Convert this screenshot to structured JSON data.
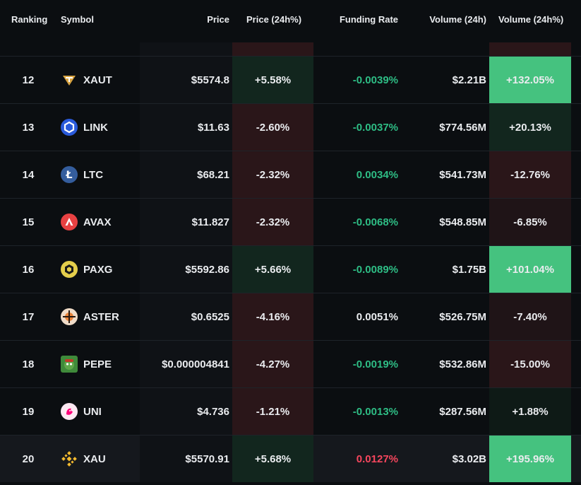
{
  "header": {
    "ranking": "Ranking",
    "symbol": "Symbol",
    "price": "Price",
    "price_change": "Price (24h%)",
    "funding": "Funding Rate",
    "volume": "Volume (24h)",
    "volume_change": "Volume (24h%)"
  },
  "colors": {
    "up_text": "#2ebd85",
    "down_text": "#f6465d",
    "strong_up_bg": "#45c27f",
    "mild_up_bg": "#12261e",
    "very_mild_up_bg": "#0e1a16",
    "down_bg": "#2a1619",
    "mild_down_bg": "#1f1417"
  },
  "rows": [
    {
      "rank": "12",
      "symbol": "XAUT",
      "icon": "tether-gold-icon",
      "price": "$5574.8",
      "price_change": "+5.58%",
      "price_tone": "up",
      "funding": "-0.0039%",
      "funding_tone": "green",
      "volume": "$2.21B",
      "volume_change": "+132.05%",
      "vol_tone": "strong-up"
    },
    {
      "rank": "13",
      "symbol": "LINK",
      "icon": "chainlink-icon",
      "price": "$11.63",
      "price_change": "-2.60%",
      "price_tone": "down",
      "funding": "-0.0037%",
      "funding_tone": "green",
      "volume": "$774.56M",
      "volume_change": "+20.13%",
      "vol_tone": "mild-up"
    },
    {
      "rank": "14",
      "symbol": "LTC",
      "icon": "litecoin-icon",
      "price": "$68.21",
      "price_change": "-2.32%",
      "price_tone": "down",
      "funding": "0.0034%",
      "funding_tone": "green",
      "volume": "$541.73M",
      "volume_change": "-12.76%",
      "vol_tone": "down"
    },
    {
      "rank": "15",
      "symbol": "AVAX",
      "icon": "avalanche-icon",
      "price": "$11.827",
      "price_change": "-2.32%",
      "price_tone": "down",
      "funding": "-0.0068%",
      "funding_tone": "green",
      "volume": "$548.85M",
      "volume_change": "-6.85%",
      "vol_tone": "mild-down"
    },
    {
      "rank": "16",
      "symbol": "PAXG",
      "icon": "pax-gold-icon",
      "price": "$5592.86",
      "price_change": "+5.66%",
      "price_tone": "up",
      "funding": "-0.0089%",
      "funding_tone": "green",
      "volume": "$1.75B",
      "volume_change": "+101.04%",
      "vol_tone": "strong-up"
    },
    {
      "rank": "17",
      "symbol": "ASTER",
      "icon": "aster-icon",
      "price": "$0.6525",
      "price_change": "-4.16%",
      "price_tone": "down",
      "funding": "0.0051%",
      "funding_tone": "white",
      "volume": "$526.75M",
      "volume_change": "-7.40%",
      "vol_tone": "mild-down"
    },
    {
      "rank": "18",
      "symbol": "PEPE",
      "icon": "pepe-icon",
      "price": "$0.000004841",
      "price_change": "-4.27%",
      "price_tone": "down",
      "funding": "-0.0019%",
      "funding_tone": "green",
      "volume": "$532.86M",
      "volume_change": "-15.00%",
      "vol_tone": "down"
    },
    {
      "rank": "19",
      "symbol": "UNI",
      "icon": "uniswap-icon",
      "price": "$4.736",
      "price_change": "-1.21%",
      "price_tone": "down",
      "funding": "-0.0013%",
      "funding_tone": "green",
      "volume": "$287.56M",
      "volume_change": "+1.88%",
      "vol_tone": "very-mild-up"
    },
    {
      "rank": "20",
      "symbol": "XAU",
      "icon": "binance-xau-icon",
      "price": "$5570.91",
      "price_change": "+5.68%",
      "price_tone": "up",
      "funding": "0.0127%",
      "funding_tone": "red",
      "volume": "$3.02B",
      "volume_change": "+195.96%",
      "vol_tone": "strong-up"
    }
  ]
}
